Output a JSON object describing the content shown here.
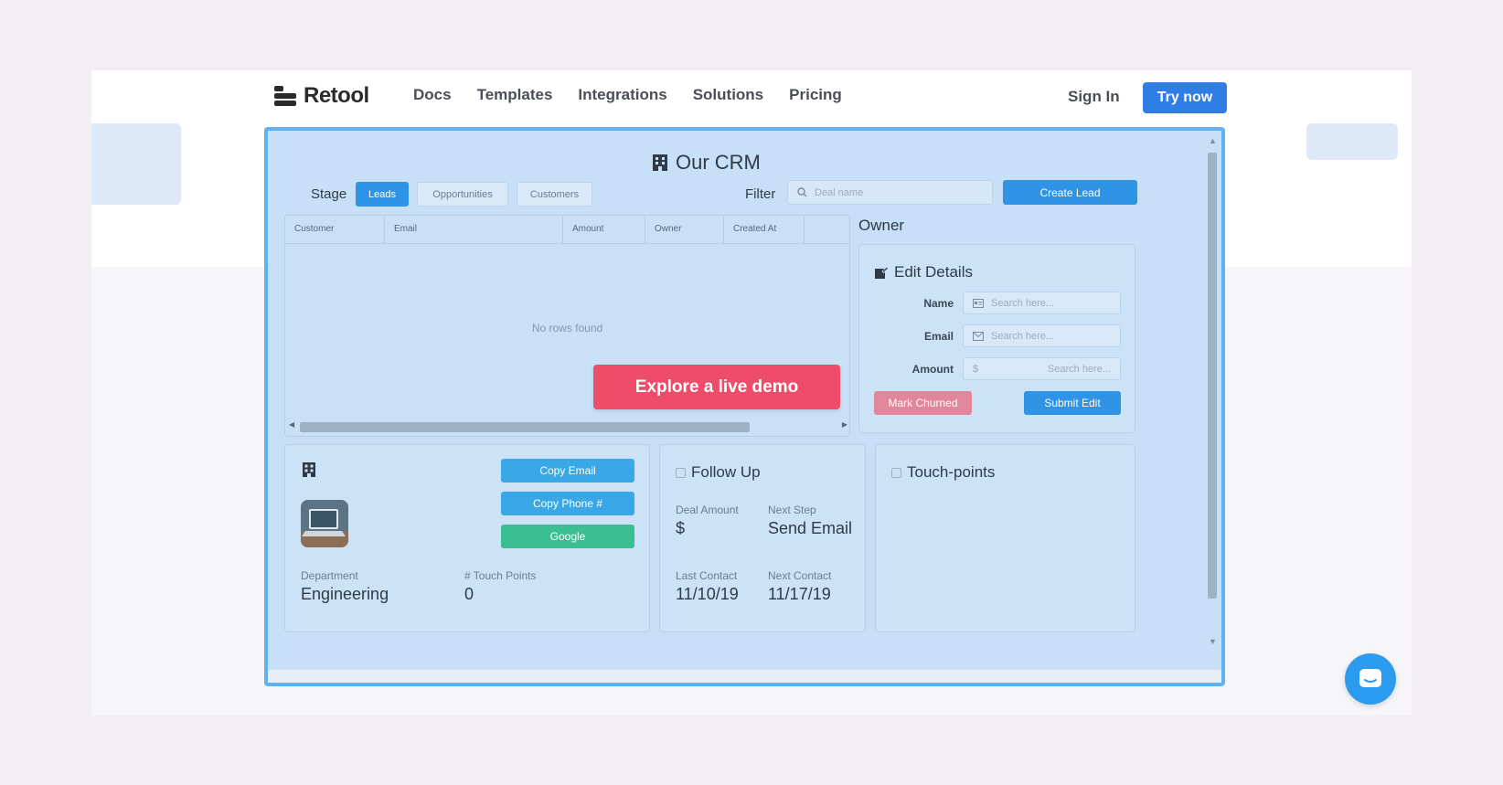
{
  "nav": {
    "logo_text": "Retool",
    "links": [
      "Docs",
      "Templates",
      "Integrations",
      "Solutions",
      "Pricing"
    ],
    "sign_in": "Sign In",
    "try_now": "Try now"
  },
  "crm": {
    "title": "Our CRM",
    "stage_label": "Stage",
    "stages": [
      "Leads",
      "Opportunities",
      "Customers"
    ],
    "active_stage": "Leads",
    "filter_label": "Filter",
    "filter_placeholder": "Deal name",
    "create_lead": "Create Lead",
    "table": {
      "columns": [
        "Customer",
        "Email",
        "Amount",
        "Owner",
        "Created At"
      ],
      "empty_message": "No rows found"
    },
    "demo_button": "Explore a live demo",
    "owner_title": "Owner",
    "edit": {
      "title": "Edit Details",
      "name_label": "Name",
      "name_placeholder": "Search here...",
      "email_label": "Email",
      "email_placeholder": "Search here...",
      "amount_label": "Amount",
      "amount_prefix": "$",
      "amount_placeholder": "Search here...",
      "mark_churned": "Mark Churned",
      "submit_edit": "Submit Edit"
    },
    "customer_card": {
      "copy_email": "Copy Email",
      "copy_phone": "Copy Phone #",
      "google": "Google",
      "department_label": "Department",
      "department_value": "Engineering",
      "touch_points_label": "# Touch Points",
      "touch_points_value": "0"
    },
    "follow_up": {
      "title": "Follow Up",
      "deal_amount_label": "Deal Amount",
      "deal_amount_value": "$",
      "next_step_label": "Next Step",
      "next_step_value": "Send Email",
      "last_contact_label": "Last Contact",
      "last_contact_value": "11/10/19",
      "next_contact_label": "Next Contact",
      "next_contact_value": "11/17/19"
    },
    "touch_points": {
      "title": "Touch-points"
    }
  },
  "colors": {
    "accent": "#2f93e6",
    "demo": "#ee4d6a",
    "crm_bg": "#c7e0f7",
    "frame_border": "#5fb1ef",
    "green": "#3bbf92",
    "churn": "#e2869b"
  },
  "icons": [
    "building-icon",
    "search-icon",
    "edit-icon",
    "id-card-icon",
    "mail-icon",
    "checkbox-icon",
    "chat-icon"
  ]
}
